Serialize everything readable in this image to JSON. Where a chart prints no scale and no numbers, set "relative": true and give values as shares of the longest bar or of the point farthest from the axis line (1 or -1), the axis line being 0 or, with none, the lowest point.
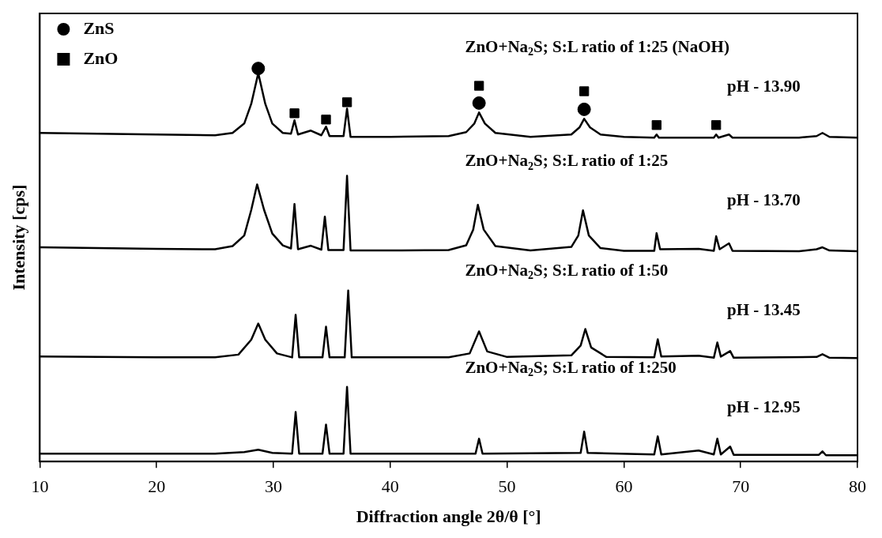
{
  "chart_data": {
    "type": "line",
    "relative": true,
    "xlabel": "Diffraction angle 2θ/θ [°]",
    "ylabel": "Intensity [cps]",
    "xlim": [
      10,
      80
    ],
    "xticks": [
      10,
      20,
      30,
      40,
      50,
      60,
      70,
      80
    ],
    "grid": false,
    "legend": "top left",
    "line_style": "solid",
    "annotations": [
      "ZnO+Na$_{2}$S; S:L ratio of 1:25 (NaOH)",
      "pH - 13.90",
      "ZnO+Na$_{2}$S; S:L ratio of 1:25",
      "pH - 13.70",
      "ZnO+Na$_{2}$S; S:L ratio of 1:50",
      "pH - 13.45",
      "ZnO+Na$_{2}$S; S:L ratio of 1:250",
      "pH - 12.95"
    ],
    "series": [
      {
        "color": "#000000",
        "x": [
          10,
          15,
          20,
          25,
          26.5,
          27.5,
          28.1,
          28.7,
          29.3,
          29.9,
          30.8,
          31.5,
          31.8,
          32.1,
          33.2,
          34.1,
          34.5,
          34.8,
          36.0,
          36.3,
          36.6,
          40,
          45,
          46.5,
          47.2,
          47.6,
          48.1,
          49,
          52,
          55.5,
          56.2,
          56.6,
          57.1,
          58,
          60,
          62.6,
          62.8,
          63.0,
          67.7,
          67.9,
          68.1,
          69.0,
          69.3,
          75,
          76.5,
          77,
          77.6,
          80
        ],
        "values": [
          0.836,
          0.834,
          0.832,
          0.83,
          0.836,
          0.86,
          0.91,
          0.988,
          0.91,
          0.86,
          0.836,
          0.834,
          0.868,
          0.832,
          0.842,
          0.83,
          0.852,
          0.828,
          0.828,
          0.898,
          0.826,
          0.826,
          0.828,
          0.838,
          0.86,
          0.888,
          0.86,
          0.836,
          0.826,
          0.832,
          0.85,
          0.872,
          0.85,
          0.832,
          0.826,
          0.824,
          0.832,
          0.824,
          0.824,
          0.832,
          0.824,
          0.832,
          0.824,
          0.824,
          0.828,
          0.836,
          0.826,
          0.824
        ]
      },
      {
        "color": "#000000",
        "x": [
          10,
          15,
          20,
          25,
          26.5,
          27.5,
          28.1,
          28.6,
          29.2,
          29.9,
          30.8,
          31.5,
          31.8,
          32.1,
          33.2,
          34.1,
          34.4,
          34.7,
          36.0,
          36.3,
          36.6,
          40,
          45,
          46.5,
          47.1,
          47.5,
          48.0,
          49,
          52,
          55.5,
          56.1,
          56.5,
          57.0,
          58,
          60,
          62.6,
          62.8,
          63.1,
          66.4,
          67.7,
          67.9,
          68.2,
          69.0,
          69.3,
          75,
          76.5,
          77,
          77.6,
          80
        ],
        "values": [
          0.545,
          0.543,
          0.541,
          0.54,
          0.548,
          0.575,
          0.64,
          0.705,
          0.64,
          0.58,
          0.55,
          0.542,
          0.655,
          0.54,
          0.549,
          0.539,
          0.623,
          0.538,
          0.538,
          0.727,
          0.537,
          0.537,
          0.538,
          0.55,
          0.59,
          0.653,
          0.59,
          0.548,
          0.537,
          0.546,
          0.575,
          0.639,
          0.575,
          0.543,
          0.536,
          0.536,
          0.581,
          0.54,
          0.541,
          0.536,
          0.573,
          0.54,
          0.555,
          0.536,
          0.535,
          0.54,
          0.545,
          0.537,
          0.535
        ]
      },
      {
        "color": "#000000",
        "x": [
          10,
          20,
          25,
          27,
          28.1,
          28.7,
          29.3,
          30.3,
          31.6,
          31.9,
          32.2,
          34.2,
          34.5,
          34.8,
          36.1,
          36.4,
          36.7,
          45,
          46.8,
          47.6,
          48.3,
          50,
          55.5,
          56.3,
          56.7,
          57.2,
          58.5,
          62.6,
          62.9,
          63.2,
          66.4,
          67.7,
          68.0,
          68.3,
          69.1,
          69.4,
          76.5,
          77,
          77.6,
          80
        ],
        "values": [
          0.267,
          0.265,
          0.265,
          0.272,
          0.31,
          0.351,
          0.31,
          0.275,
          0.265,
          0.373,
          0.265,
          0.265,
          0.343,
          0.265,
          0.265,
          0.435,
          0.265,
          0.265,
          0.275,
          0.331,
          0.28,
          0.266,
          0.27,
          0.295,
          0.337,
          0.29,
          0.266,
          0.265,
          0.311,
          0.267,
          0.269,
          0.264,
          0.303,
          0.267,
          0.281,
          0.264,
          0.266,
          0.273,
          0.264,
          0.263
        ]
      },
      {
        "color": "#000000",
        "x": [
          10,
          25,
          27.5,
          28.7,
          29.9,
          31.6,
          31.9,
          32.2,
          34.2,
          34.5,
          34.8,
          36.0,
          36.3,
          36.6,
          47.3,
          47.6,
          47.9,
          56.3,
          56.6,
          56.9,
          62.6,
          62.9,
          63.2,
          66.4,
          67.7,
          68.0,
          68.3,
          69.1,
          69.4,
          76.7,
          77,
          77.3,
          80
        ],
        "values": [
          0.02,
          0.02,
          0.024,
          0.03,
          0.022,
          0.02,
          0.126,
          0.02,
          0.02,
          0.094,
          0.02,
          0.02,
          0.19,
          0.02,
          0.02,
          0.058,
          0.02,
          0.022,
          0.076,
          0.022,
          0.018,
          0.064,
          0.018,
          0.028,
          0.018,
          0.058,
          0.018,
          0.038,
          0.017,
          0.017,
          0.026,
          0.016,
          0.016
        ]
      },
      {
        "type": "scatter",
        "name": "ZnS",
        "color": "#000000",
        "marker": "circle",
        "x": [
          28.7,
          47.6,
          56.6
        ],
        "values": [
          1.0,
          0.912,
          0.896
        ]
      },
      {
        "type": "scatter",
        "name": "ZnO",
        "color": "#000000",
        "marker": "square",
        "x": [
          31.8,
          34.5,
          36.3,
          47.6,
          56.6,
          62.8,
          67.9
        ],
        "values": [
          0.886,
          0.87,
          0.914,
          0.956,
          0.942,
          0.856,
          0.856
        ]
      }
    ]
  }
}
